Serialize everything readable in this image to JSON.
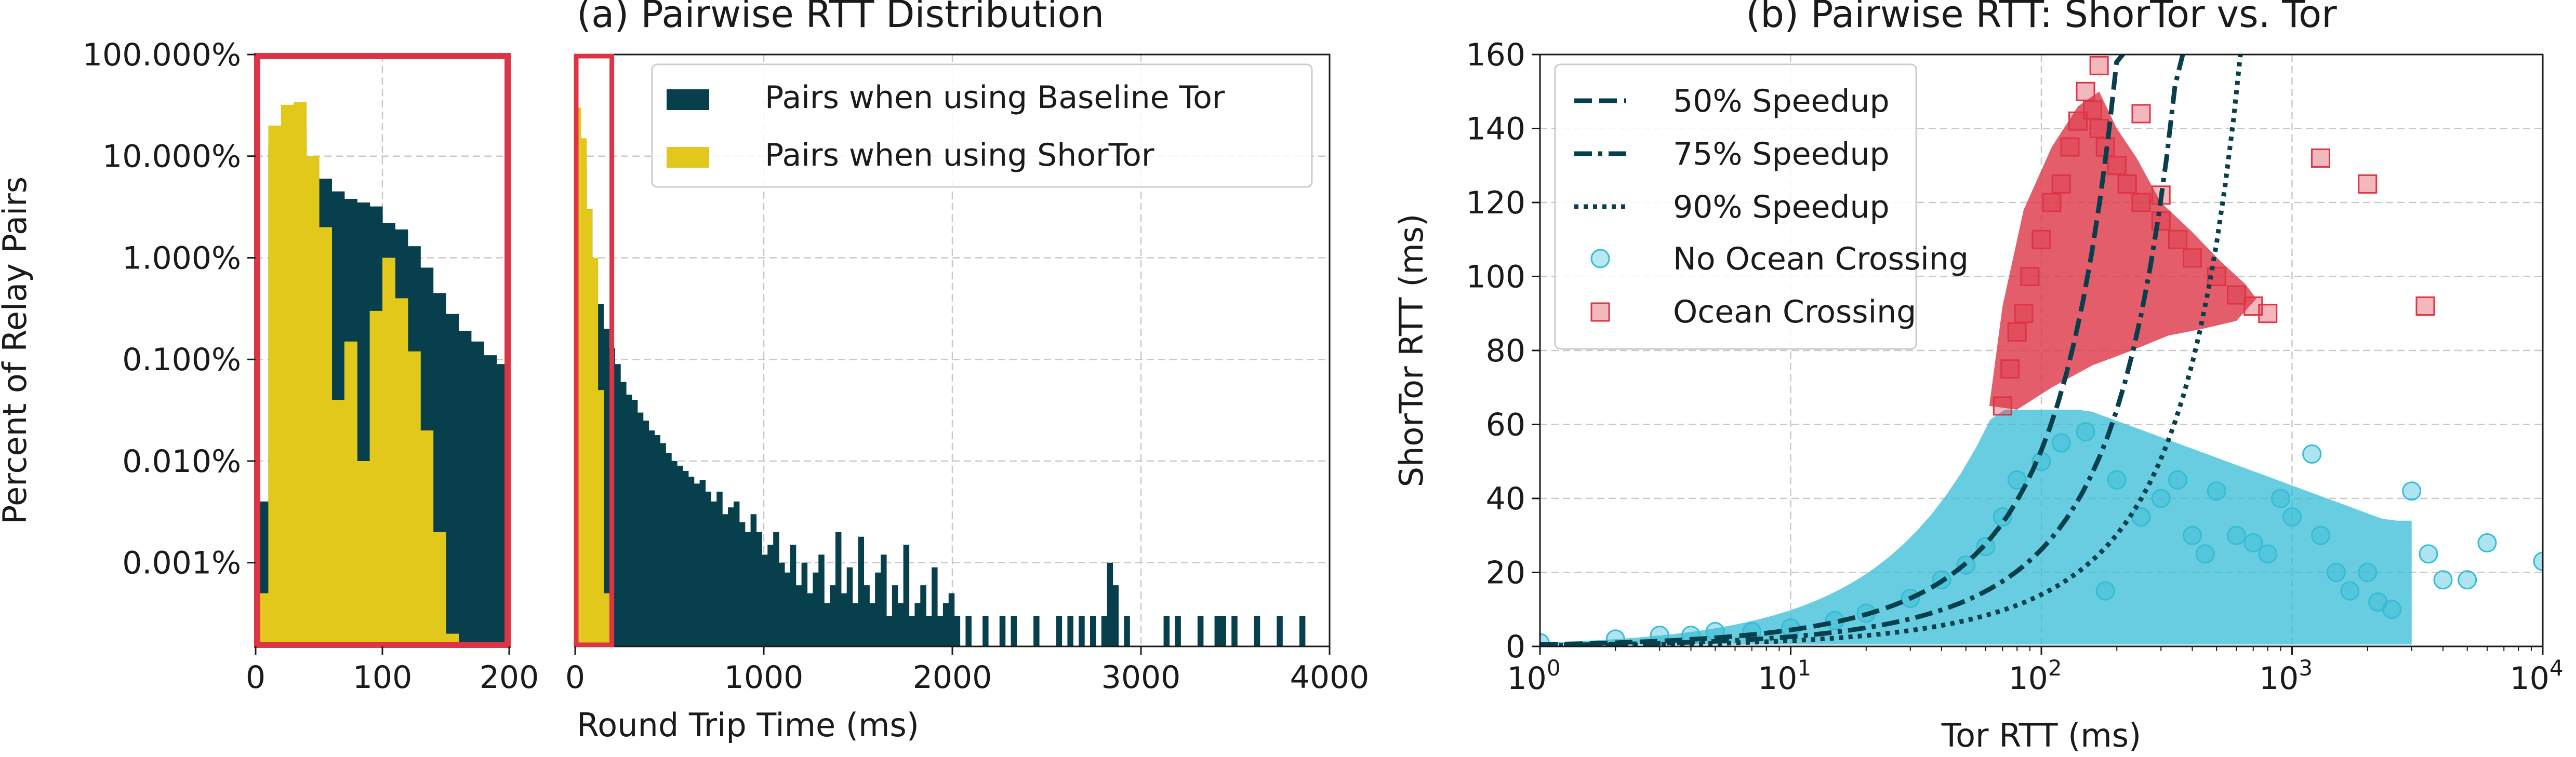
{
  "colors": {
    "baseline": "#073f4d",
    "shortor": "#e2c81a",
    "ocean": "#dd3545",
    "no_ocean": "#35bcd6",
    "zoom_box": "#dd3545",
    "grid": "#c8c8c8"
  },
  "chart_data": [
    {
      "id": "a",
      "type": "bar",
      "title": "(a) Pairwise RTT Distribution",
      "xlabel": "Round Trip Time (ms)",
      "ylabel": "Percent of Relay Pairs",
      "yscale": "log",
      "ylim": [
        0.00015,
        100
      ],
      "yticks": [
        {
          "value": 100,
          "label": "100.000%"
        },
        {
          "value": 10,
          "label": "10.000%"
        },
        {
          "value": 1,
          "label": "1.000%"
        },
        {
          "value": 0.1,
          "label": "0.100%"
        },
        {
          "value": 0.01,
          "label": "0.010%"
        },
        {
          "value": 0.001,
          "label": "0.001%"
        }
      ],
      "grid": true,
      "legend": {
        "location": "top-right",
        "entries": [
          "Pairs when using Baseline Tor",
          "Pairs when using ShorTor"
        ]
      },
      "panels": [
        {
          "name": "zoomed",
          "xlim": [
            0,
            200
          ],
          "xticks": [
            0,
            100,
            200
          ],
          "highlight_box": true,
          "bin_width": 10,
          "series": [
            {
              "name": "Pairs when using Baseline Tor",
              "x": [
                0,
                10,
                20,
                30,
                40,
                50,
                60,
                70,
                80,
                90,
                100,
                110,
                120,
                130,
                140,
                150,
                160,
                170,
                180,
                190
              ],
              "values": [
                0.004,
                12,
                20,
                18,
                9,
                6,
                4.5,
                3.8,
                3.5,
                3.2,
                2.2,
                1.9,
                1.3,
                0.8,
                0.45,
                0.28,
                0.19,
                0.15,
                0.11,
                0.09
              ]
            },
            {
              "name": "Pairs when using ShorTor",
              "x": [
                0,
                10,
                20,
                30,
                40,
                50,
                60,
                70,
                80,
                90,
                100,
                110,
                120,
                130,
                140,
                150
              ],
              "values": [
                0.0005,
                20,
                32,
                34,
                10,
                2,
                0.04,
                0.15,
                0.01,
                0.3,
                1,
                0.4,
                0.12,
                0.02,
                0.002,
                0.0002
              ]
            }
          ]
        },
        {
          "name": "full",
          "xlim": [
            0,
            4000
          ],
          "xticks": [
            0,
            1000,
            2000,
            3000,
            4000
          ],
          "highlight_box": true,
          "highlight_range": [
            0,
            200
          ],
          "bin_width": 30,
          "series": [
            {
              "name": "Pairs when using Baseline Tor",
              "x": [
                0,
                30,
                60,
                90,
                120,
                150,
                180,
                210,
                240,
                270,
                300,
                330,
                360,
                390,
                420,
                450,
                480,
                510,
                540,
                570,
                600,
                630,
                660,
                690,
                720,
                750,
                780,
                810,
                840,
                870,
                900,
                930,
                960,
                990,
                1020,
                1050,
                1080,
                1110,
                1140,
                1170,
                1200,
                1230,
                1260,
                1290,
                1320,
                1350,
                1380,
                1410,
                1440,
                1470,
                1500,
                1530,
                1560,
                1590,
                1620,
                1650,
                1680,
                1710,
                1740,
                1770,
                1800,
                1830,
                1860,
                1890,
                1920,
                1950,
                1980,
                2010,
                2070,
                2160,
                2250,
                2310,
                2430,
                2550,
                2610,
                2670,
                2730,
                2790,
                2820,
                2850,
                2910,
                3120,
                3180,
                3300,
                3390,
                3420,
                3480,
                3600,
                3720,
                3840
              ],
              "values": [
                20,
                8,
                3,
                0.8,
                0.35,
                0.2,
                0.13,
                0.09,
                0.06,
                0.045,
                0.04,
                0.03,
                0.025,
                0.02,
                0.018,
                0.015,
                0.012,
                0.01,
                0.009,
                0.008,
                0.007,
                0.006,
                0.0065,
                0.005,
                0.004,
                0.005,
                0.003,
                0.0035,
                0.004,
                0.0025,
                0.002,
                0.003,
                0.002,
                0.0012,
                0.0015,
                0.002,
                0.001,
                0.0008,
                0.0015,
                0.0006,
                0.001,
                0.0005,
                0.0008,
                0.0012,
                0.0004,
                0.0006,
                0.002,
                0.0005,
                0.0009,
                0.0004,
                0.0018,
                0.0006,
                0.0004,
                0.0008,
                0.0012,
                0.0003,
                0.0006,
                0.0004,
                0.0015,
                0.0003,
                0.0004,
                0.0006,
                0.0003,
                0.0009,
                0.0003,
                0.0004,
                0.0005,
                0.0003,
                0.0003,
                0.0003,
                0.0003,
                0.0003,
                0.0003,
                0.0003,
                0.0003,
                0.0003,
                0.0003,
                0.0003,
                0.001,
                0.0006,
                0.0003,
                0.0003,
                0.0003,
                0.0003,
                0.0003,
                0.0003,
                0.0003,
                0.0003,
                0.0003,
                0.0003
              ]
            },
            {
              "name": "Pairs when using ShorTor",
              "x": [
                0,
                30,
                60,
                90,
                120,
                150
              ],
              "values": [
                30,
                15,
                3,
                1,
                0.05,
                0.0005
              ]
            }
          ]
        }
      ]
    },
    {
      "id": "b",
      "type": "scatter",
      "title": "(b) Pairwise RTT: ShorTor vs. Tor",
      "xlabel": "Tor RTT (ms)",
      "ylabel": "ShorTor RTT (ms)",
      "xscale": "log",
      "xlim": [
        1,
        10000
      ],
      "ylim": [
        0,
        160
      ],
      "xticks": [
        {
          "value": 1,
          "base": "10",
          "exp": "0"
        },
        {
          "value": 10,
          "base": "10",
          "exp": "1"
        },
        {
          "value": 100,
          "base": "10",
          "exp": "2"
        },
        {
          "value": 1000,
          "base": "10",
          "exp": "3"
        },
        {
          "value": 10000,
          "base": "10",
          "exp": "4"
        }
      ],
      "yticks": [
        0,
        20,
        40,
        60,
        80,
        100,
        120,
        140,
        160
      ],
      "grid": true,
      "legend": {
        "location": "top-left",
        "entries": [
          "50% Speedup",
          "75% Speedup",
          "90% Speedup",
          "No Ocean Crossing",
          "Ocean Crossing"
        ]
      },
      "lines": [
        {
          "name": "50% Speedup",
          "factor": 0.5,
          "style": "dashed"
        },
        {
          "name": "75% Speedup",
          "factor": 0.25,
          "style": "dashdot"
        },
        {
          "name": "90% Speedup",
          "factor": 0.1,
          "style": "dotted"
        }
      ],
      "series": [
        {
          "name": "No Ocean Crossing",
          "marker": "circle",
          "x": [
            1,
            2,
            3,
            4,
            5,
            7,
            10,
            15,
            20,
            30,
            40,
            50,
            60,
            70,
            80,
            100,
            120,
            150,
            200,
            250,
            300,
            400,
            500,
            600,
            800,
            1000,
            1200,
            1500,
            2000,
            3000,
            4000,
            5000,
            6000,
            10000,
            1300,
            1700,
            2500,
            3500,
            900,
            700,
            450,
            350,
            180,
            2200
          ],
          "y": [
            1,
            2,
            3,
            3,
            4,
            4,
            5,
            7,
            9,
            13,
            18,
            22,
            27,
            35,
            45,
            50,
            55,
            58,
            45,
            35,
            40,
            30,
            42,
            30,
            25,
            35,
            52,
            20,
            20,
            42,
            18,
            18,
            28,
            23,
            30,
            15,
            10,
            25,
            40,
            28,
            25,
            45,
            15,
            12
          ]
        },
        {
          "name": "Ocean Crossing",
          "marker": "square",
          "x": [
            70,
            75,
            80,
            85,
            90,
            100,
            110,
            120,
            130,
            140,
            150,
            160,
            170,
            180,
            200,
            220,
            250,
            300,
            350,
            400,
            500,
            600,
            700,
            800,
            250,
            300,
            1300,
            2000,
            3400,
            170
          ],
          "y": [
            65,
            75,
            85,
            90,
            100,
            110,
            120,
            125,
            135,
            142,
            150,
            145,
            140,
            135,
            130,
            125,
            120,
            115,
            110,
            105,
            100,
            95,
            92,
            90,
            144,
            122,
            132,
            125,
            92,
            157
          ]
        }
      ]
    }
  ]
}
